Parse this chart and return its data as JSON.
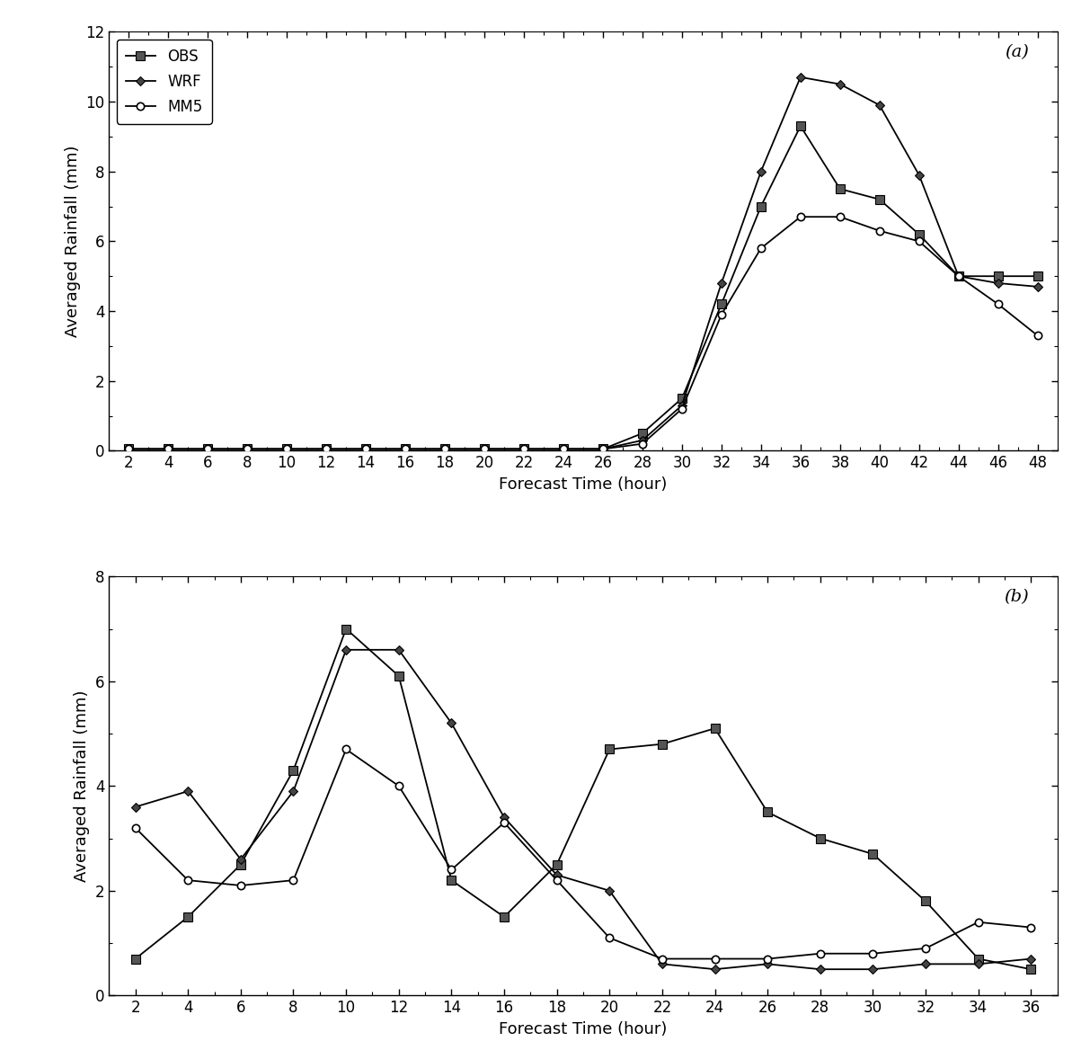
{
  "panel_a": {
    "x": [
      2,
      4,
      6,
      8,
      10,
      12,
      14,
      16,
      18,
      20,
      22,
      24,
      26,
      28,
      30,
      32,
      34,
      36,
      38,
      40,
      42,
      44,
      46,
      48
    ],
    "OBS": [
      0.05,
      0.05,
      0.05,
      0.05,
      0.05,
      0.05,
      0.05,
      0.05,
      0.05,
      0.05,
      0.05,
      0.05,
      0.05,
      0.5,
      1.5,
      4.2,
      7.0,
      9.3,
      7.5,
      7.2,
      6.2,
      5.0,
      5.0,
      5.0
    ],
    "WRF": [
      0.05,
      0.05,
      0.05,
      0.05,
      0.05,
      0.05,
      0.05,
      0.05,
      0.05,
      0.05,
      0.05,
      0.05,
      0.05,
      0.3,
      1.3,
      4.8,
      8.0,
      10.7,
      10.5,
      9.9,
      7.9,
      5.0,
      4.8,
      4.7
    ],
    "MM5": [
      0.05,
      0.05,
      0.05,
      0.05,
      0.05,
      0.05,
      0.05,
      0.05,
      0.05,
      0.05,
      0.05,
      0.05,
      0.05,
      0.2,
      1.2,
      3.9,
      5.8,
      6.7,
      6.7,
      6.3,
      6.0,
      5.0,
      4.2,
      3.3
    ],
    "ylim": [
      0,
      12
    ],
    "yticks": [
      0,
      2,
      4,
      6,
      8,
      10,
      12
    ],
    "label": "(a)"
  },
  "panel_b": {
    "x": [
      2,
      4,
      6,
      8,
      10,
      12,
      14,
      16,
      18,
      20,
      22,
      24,
      26,
      28,
      30,
      32,
      34,
      36
    ],
    "OBS": [
      0.7,
      1.5,
      2.5,
      4.3,
      7.0,
      6.1,
      2.2,
      1.5,
      2.5,
      4.7,
      4.8,
      5.1,
      3.5,
      3.0,
      2.7,
      1.8,
      0.7,
      0.5
    ],
    "WRF": [
      3.6,
      3.9,
      2.6,
      3.9,
      6.6,
      6.6,
      5.2,
      3.4,
      2.3,
      2.0,
      0.6,
      0.5,
      0.6,
      0.5,
      0.5,
      0.6,
      0.6,
      0.7
    ],
    "MM5": [
      3.2,
      2.2,
      2.1,
      2.2,
      4.7,
      4.0,
      2.4,
      3.3,
      2.2,
      1.1,
      0.7,
      0.7,
      0.7,
      0.8,
      0.8,
      0.9,
      1.4,
      1.3
    ],
    "ylim": [
      0,
      8
    ],
    "yticks": [
      0,
      2,
      4,
      6,
      8
    ],
    "label": "(b)"
  },
  "xlabel": "Forecast Time (hour)",
  "ylabel": "Averaged Rainfall (mm)",
  "legend_labels": [
    "OBS",
    "WRF",
    "MM5"
  ],
  "line_color": "#000000",
  "mm5_line_color": "#666666",
  "background_color": "#ffffff",
  "obs_marker_face": "#555555",
  "wrf_marker_face": "#444444",
  "mm5_marker_face": "#ffffff"
}
